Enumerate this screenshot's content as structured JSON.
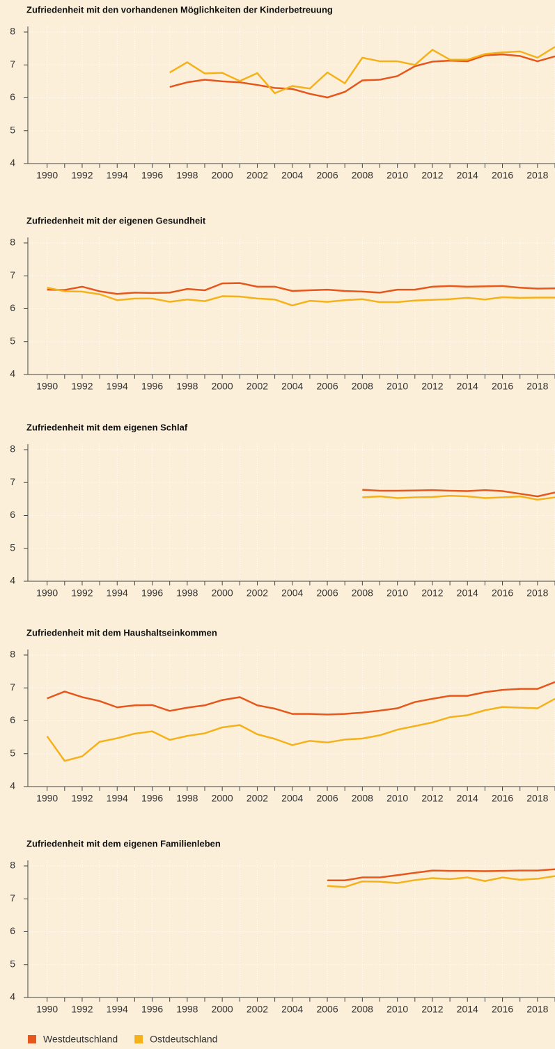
{
  "chart_data": [
    {
      "type": "line",
      "title": "Zufriedenheit mit den vorhandenen Möglichkeiten der Kinderbetreuung",
      "x": [
        1990,
        1991,
        1992,
        1993,
        1994,
        1995,
        1996,
        1997,
        1998,
        1999,
        2000,
        2001,
        2002,
        2003,
        2004,
        2005,
        2006,
        2007,
        2008,
        2009,
        2010,
        2011,
        2012,
        2013,
        2014,
        2015,
        2016,
        2017,
        2018,
        2019
      ],
      "series": [
        {
          "name": "Westdeutschland",
          "color": "#e5571c",
          "values": [
            null,
            null,
            null,
            null,
            null,
            null,
            null,
            6.33,
            6.47,
            6.55,
            6.5,
            6.47,
            6.39,
            6.3,
            6.27,
            6.12,
            6.01,
            6.18,
            6.53,
            6.55,
            6.66,
            6.96,
            7.1,
            7.13,
            7.11,
            7.29,
            7.32,
            7.27,
            7.11,
            7.26
          ]
        },
        {
          "name": "Ostdeutschland",
          "color": "#f5b11a",
          "values": [
            null,
            null,
            null,
            null,
            null,
            null,
            null,
            6.77,
            7.08,
            6.74,
            6.76,
            6.51,
            6.75,
            6.14,
            6.36,
            6.28,
            6.77,
            6.44,
            7.22,
            7.11,
            7.11,
            7.0,
            7.46,
            7.16,
            7.16,
            7.33,
            7.38,
            7.41,
            7.22,
            7.55
          ]
        }
      ],
      "xlim": [
        1988.9,
        2019
      ],
      "xticks": [
        1990,
        1992,
        1994,
        1996,
        1998,
        2000,
        2002,
        2004,
        2006,
        2008,
        2010,
        2012,
        2014,
        2016,
        2018
      ],
      "x_minor_ticks": [
        1991,
        1993,
        1995,
        1997,
        1999,
        2001,
        2003,
        2005,
        2007,
        2009,
        2011,
        2013,
        2015,
        2017,
        2019
      ],
      "ylim": [
        4,
        8
      ],
      "yticks": [
        4,
        5,
        6,
        7,
        8
      ],
      "grid": true
    },
    {
      "type": "line",
      "title": "Zufriedenheit mit der eigenen Gesundheit",
      "x": [
        1990,
        1991,
        1992,
        1993,
        1994,
        1995,
        1996,
        1997,
        1998,
        1999,
        2000,
        2001,
        2002,
        2003,
        2004,
        2005,
        2006,
        2007,
        2008,
        2009,
        2010,
        2011,
        2012,
        2013,
        2014,
        2015,
        2016,
        2017,
        2018,
        2019
      ],
      "series": [
        {
          "name": "Westdeutschland",
          "color": "#e5571c",
          "values": [
            6.58,
            6.57,
            6.67,
            6.53,
            6.45,
            6.49,
            6.48,
            6.49,
            6.6,
            6.56,
            6.77,
            6.78,
            6.67,
            6.67,
            6.54,
            6.56,
            6.58,
            6.54,
            6.52,
            6.49,
            6.58,
            6.58,
            6.67,
            6.69,
            6.67,
            6.68,
            6.69,
            6.64,
            6.61,
            6.62
          ]
        },
        {
          "name": "Ostdeutschland",
          "color": "#f5b11a",
          "values": [
            6.64,
            6.53,
            6.52,
            6.44,
            6.26,
            6.31,
            6.31,
            6.21,
            6.28,
            6.23,
            6.38,
            6.37,
            6.31,
            6.28,
            6.1,
            6.24,
            6.21,
            6.26,
            6.29,
            6.2,
            6.2,
            6.25,
            6.27,
            6.29,
            6.33,
            6.28,
            6.35,
            6.33,
            6.34,
            6.34
          ]
        }
      ],
      "xlim": [
        1988.9,
        2019
      ],
      "xticks": [
        1990,
        1992,
        1994,
        1996,
        1998,
        2000,
        2002,
        2004,
        2006,
        2008,
        2010,
        2012,
        2014,
        2016,
        2018
      ],
      "x_minor_ticks": [
        1991,
        1993,
        1995,
        1997,
        1999,
        2001,
        2003,
        2005,
        2007,
        2009,
        2011,
        2013,
        2015,
        2017,
        2019
      ],
      "ylim": [
        4,
        8
      ],
      "yticks": [
        4,
        5,
        6,
        7,
        8
      ],
      "grid": true
    },
    {
      "type": "line",
      "title": "Zufriedenheit mit dem eigenen Schlaf",
      "x": [
        1990,
        1991,
        1992,
        1993,
        1994,
        1995,
        1996,
        1997,
        1998,
        1999,
        2000,
        2001,
        2002,
        2003,
        2004,
        2005,
        2006,
        2007,
        2008,
        2009,
        2010,
        2011,
        2012,
        2013,
        2014,
        2015,
        2016,
        2017,
        2018,
        2019
      ],
      "series": [
        {
          "name": "Westdeutschland",
          "color": "#e5571c",
          "values": [
            null,
            null,
            null,
            null,
            null,
            null,
            null,
            null,
            null,
            null,
            null,
            null,
            null,
            null,
            null,
            null,
            null,
            null,
            6.78,
            6.75,
            6.75,
            6.76,
            6.77,
            6.75,
            6.74,
            6.77,
            6.74,
            6.66,
            6.58,
            6.7
          ]
        },
        {
          "name": "Ostdeutschland",
          "color": "#f5b11a",
          "values": [
            null,
            null,
            null,
            null,
            null,
            null,
            null,
            null,
            null,
            null,
            null,
            null,
            null,
            null,
            null,
            null,
            null,
            null,
            6.55,
            6.58,
            6.53,
            6.55,
            6.56,
            6.6,
            6.58,
            6.53,
            6.55,
            6.58,
            6.48,
            6.55
          ]
        }
      ],
      "xlim": [
        1988.9,
        2019
      ],
      "xticks": [
        1990,
        1992,
        1994,
        1996,
        1998,
        2000,
        2002,
        2004,
        2006,
        2008,
        2010,
        2012,
        2014,
        2016,
        2018
      ],
      "x_minor_ticks": [
        1991,
        1993,
        1995,
        1997,
        1999,
        2001,
        2003,
        2005,
        2007,
        2009,
        2011,
        2013,
        2015,
        2017,
        2019
      ],
      "ylim": [
        4,
        8
      ],
      "yticks": [
        4,
        5,
        6,
        7,
        8
      ],
      "grid": true
    },
    {
      "type": "line",
      "title": "Zufriedenheit mit dem Haushaltseinkommen",
      "x": [
        1990,
        1991,
        1992,
        1993,
        1994,
        1995,
        1996,
        1997,
        1998,
        1999,
        2000,
        2001,
        2002,
        2003,
        2004,
        2005,
        2006,
        2007,
        2008,
        2009,
        2010,
        2011,
        2012,
        2013,
        2014,
        2015,
        2016,
        2017,
        2018,
        2019
      ],
      "series": [
        {
          "name": "Westdeutschland",
          "color": "#e5571c",
          "values": [
            6.68,
            6.89,
            6.72,
            6.6,
            6.41,
            6.47,
            6.48,
            6.3,
            6.4,
            6.47,
            6.63,
            6.72,
            6.47,
            6.37,
            6.21,
            6.21,
            6.19,
            6.21,
            6.25,
            6.31,
            6.38,
            6.57,
            6.67,
            6.76,
            6.76,
            6.87,
            6.94,
            6.97,
            6.97,
            7.18
          ]
        },
        {
          "name": "Ostdeutschland",
          "color": "#f5b11a",
          "values": [
            5.53,
            4.78,
            4.92,
            5.36,
            5.47,
            5.61,
            5.68,
            5.42,
            5.54,
            5.62,
            5.8,
            5.87,
            5.59,
            5.45,
            5.26,
            5.39,
            5.34,
            5.43,
            5.46,
            5.56,
            5.73,
            5.84,
            5.95,
            6.11,
            6.17,
            6.32,
            6.42,
            6.4,
            6.38,
            6.67
          ]
        }
      ],
      "xlim": [
        1988.9,
        2019
      ],
      "xticks": [
        1990,
        1992,
        1994,
        1996,
        1998,
        2000,
        2002,
        2004,
        2006,
        2008,
        2010,
        2012,
        2014,
        2016,
        2018
      ],
      "x_minor_ticks": [
        1991,
        1993,
        1995,
        1997,
        1999,
        2001,
        2003,
        2005,
        2007,
        2009,
        2011,
        2013,
        2015,
        2017,
        2019
      ],
      "ylim": [
        4,
        8
      ],
      "yticks": [
        4,
        5,
        6,
        7,
        8
      ],
      "grid": true
    },
    {
      "type": "line",
      "title": "Zufriedenheit mit dem eigenen Familienleben",
      "x": [
        1990,
        1991,
        1992,
        1993,
        1994,
        1995,
        1996,
        1997,
        1998,
        1999,
        2000,
        2001,
        2002,
        2003,
        2004,
        2005,
        2006,
        2007,
        2008,
        2009,
        2010,
        2011,
        2012,
        2013,
        2014,
        2015,
        2016,
        2017,
        2018,
        2019
      ],
      "series": [
        {
          "name": "Westdeutschland",
          "color": "#e5571c",
          "values": [
            null,
            null,
            null,
            null,
            null,
            null,
            null,
            null,
            null,
            null,
            null,
            null,
            null,
            null,
            null,
            null,
            7.56,
            7.56,
            7.65,
            7.65,
            7.72,
            7.79,
            7.86,
            7.85,
            7.85,
            7.84,
            7.85,
            7.86,
            7.86,
            7.9
          ]
        },
        {
          "name": "Ostdeutschland",
          "color": "#f5b11a",
          "values": [
            null,
            null,
            null,
            null,
            null,
            null,
            null,
            null,
            null,
            null,
            null,
            null,
            null,
            null,
            null,
            null,
            7.39,
            7.36,
            7.53,
            7.52,
            7.48,
            7.57,
            7.63,
            7.6,
            7.65,
            7.54,
            7.65,
            7.58,
            7.61,
            7.69
          ]
        }
      ],
      "xlim": [
        1988.9,
        2019
      ],
      "xticks": [
        1990,
        1992,
        1994,
        1996,
        1998,
        2000,
        2002,
        2004,
        2006,
        2008,
        2010,
        2012,
        2014,
        2016,
        2018
      ],
      "x_minor_ticks": [
        1991,
        1993,
        1995,
        1997,
        1999,
        2001,
        2003,
        2005,
        2007,
        2009,
        2011,
        2013,
        2015,
        2017,
        2019
      ],
      "ylim": [
        4,
        8
      ],
      "yticks": [
        4,
        5,
        6,
        7,
        8
      ],
      "grid": true
    }
  ]
}
